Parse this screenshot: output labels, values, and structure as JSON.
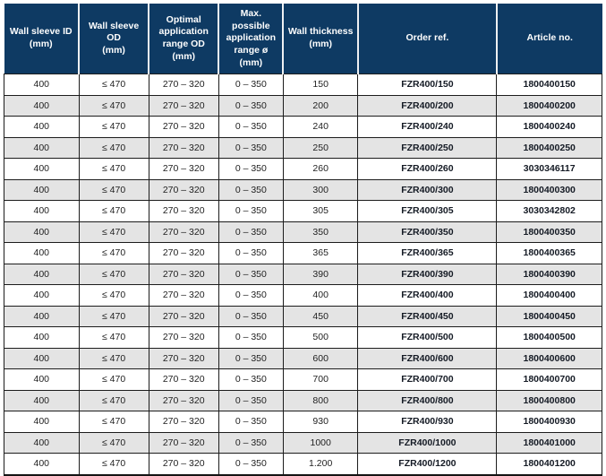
{
  "table": {
    "headers": [
      "Wall sleeve ID\n(mm)",
      "Wall sleeve OD\n(mm)",
      "Optimal\napplication\nrange OD\n(mm)",
      "Max. possible\napplication\nrange ø (mm)",
      "Wall thickness\n(mm)",
      "Order ref.",
      "Article no."
    ],
    "bold_columns": [
      5,
      6
    ],
    "rows": [
      [
        "400",
        "≤ 470",
        "270 – 320",
        "0 – 350",
        "150",
        "FZR400/150",
        "1800400150"
      ],
      [
        "400",
        "≤ 470",
        "270 – 320",
        "0 – 350",
        "200",
        "FZR400/200",
        "1800400200"
      ],
      [
        "400",
        "≤ 470",
        "270 – 320",
        "0 – 350",
        "240",
        "FZR400/240",
        "1800400240"
      ],
      [
        "400",
        "≤ 470",
        "270 – 320",
        "0 – 350",
        "250",
        "FZR400/250",
        "1800400250"
      ],
      [
        "400",
        "≤ 470",
        "270 – 320",
        "0 – 350",
        "260",
        "FZR400/260",
        "3030346117"
      ],
      [
        "400",
        "≤ 470",
        "270 – 320",
        "0 – 350",
        "300",
        "FZR400/300",
        "1800400300"
      ],
      [
        "400",
        "≤ 470",
        "270 – 320",
        "0 – 350",
        "305",
        "FZR400/305",
        "3030342802"
      ],
      [
        "400",
        "≤ 470",
        "270 – 320",
        "0 – 350",
        "350",
        "FZR400/350",
        "1800400350"
      ],
      [
        "400",
        "≤ 470",
        "270 – 320",
        "0 – 350",
        "365",
        "FZR400/365",
        "1800400365"
      ],
      [
        "400",
        "≤ 470",
        "270 – 320",
        "0 – 350",
        "390",
        "FZR400/390",
        "1800400390"
      ],
      [
        "400",
        "≤ 470",
        "270 – 320",
        "0 – 350",
        "400",
        "FZR400/400",
        "1800400400"
      ],
      [
        "400",
        "≤ 470",
        "270 – 320",
        "0 – 350",
        "450",
        "FZR400/450",
        "1800400450"
      ],
      [
        "400",
        "≤ 470",
        "270 – 320",
        "0 – 350",
        "500",
        "FZR400/500",
        "1800400500"
      ],
      [
        "400",
        "≤ 470",
        "270 – 320",
        "0 – 350",
        "600",
        "FZR400/600",
        "1800400600"
      ],
      [
        "400",
        "≤ 470",
        "270 – 320",
        "0 – 350",
        "700",
        "FZR400/700",
        "1800400700"
      ],
      [
        "400",
        "≤ 470",
        "270 – 320",
        "0 – 350",
        "800",
        "FZR400/800",
        "1800400800"
      ],
      [
        "400",
        "≤ 470",
        "270 – 320",
        "0 – 350",
        "930",
        "FZR400/930",
        "1800400930"
      ],
      [
        "400",
        "≤ 470",
        "270 – 320",
        "0 – 350",
        "1000",
        "FZR400/1000",
        "1800401000"
      ],
      [
        "400",
        "≤ 470",
        "270 – 320",
        "0 – 350",
        "1.200",
        "FZR400/1200",
        "1800401200"
      ]
    ],
    "colors": {
      "header_bg": "#0e3a63",
      "header_text": "#ffffff",
      "row_alt_bg": "#e4e4e4",
      "border": "#1c1c1c"
    }
  }
}
